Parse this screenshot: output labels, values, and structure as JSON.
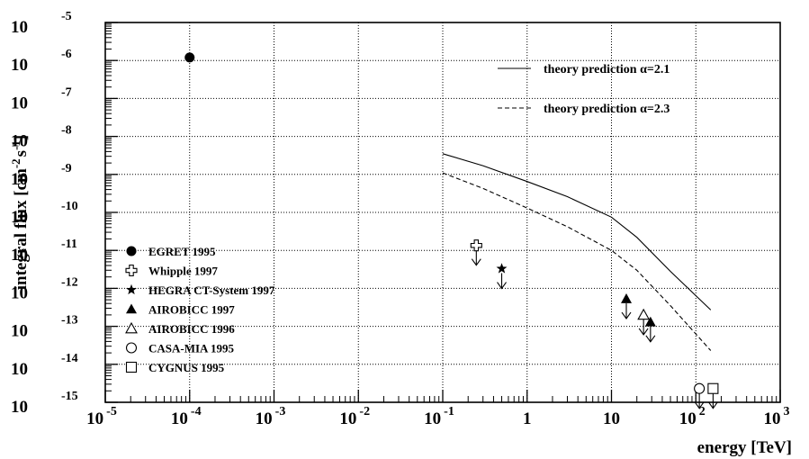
{
  "chart_data": {
    "type": "scatter",
    "xlabel": "energy [TeV]",
    "ylabel": "integral flux [cm",
    "ylabel_sup1": "-2",
    "ylabel_mid": "s",
    "ylabel_sup2": "-1",
    "ylabel_end": "]",
    "x_scale": "log",
    "y_scale": "log",
    "xlim": [
      1e-05,
      1000
    ],
    "ylim": [
      1e-15,
      1e-05
    ],
    "grid": true,
    "x_ticks": [
      {
        "v": 1e-05,
        "base": "10",
        "exp": "-5"
      },
      {
        "v": 0.0001,
        "base": "10",
        "exp": "-4"
      },
      {
        "v": 0.001,
        "base": "10",
        "exp": "-3"
      },
      {
        "v": 0.01,
        "base": "10",
        "exp": "-2"
      },
      {
        "v": 0.1,
        "base": "10",
        "exp": "-1"
      },
      {
        "v": 1,
        "base": "1",
        "exp": ""
      },
      {
        "v": 10,
        "base": "10",
        "exp": ""
      },
      {
        "v": 100,
        "base": "10",
        "exp": "2"
      },
      {
        "v": 1000,
        "base": "10",
        "exp": "3"
      }
    ],
    "y_ticks": [
      {
        "v": -15,
        "base": "10",
        "exp": "-15"
      },
      {
        "v": -14,
        "base": "10",
        "exp": "-14"
      },
      {
        "v": -13,
        "base": "10",
        "exp": "-13"
      },
      {
        "v": -12,
        "base": "10",
        "exp": "-12"
      },
      {
        "v": -11,
        "base": "10",
        "exp": "-11"
      },
      {
        "v": -10,
        "base": "10",
        "exp": "-10"
      },
      {
        "v": -9,
        "base": "10",
        "exp": "-9"
      },
      {
        "v": -8,
        "base": "10",
        "exp": "-8"
      },
      {
        "v": -7,
        "base": "10",
        "exp": "-7"
      },
      {
        "v": -6,
        "base": "10",
        "exp": "-6"
      },
      {
        "v": -5,
        "base": "10",
        "exp": "-5"
      }
    ],
    "theory_lines": [
      {
        "name": "theory prediction α=2.1",
        "dash": "solid",
        "points": [
          [
            0.1,
            3.5e-09
          ],
          [
            0.3,
            1.7e-09
          ],
          [
            1,
            6.5e-10
          ],
          [
            3,
            2.6e-10
          ],
          [
            10,
            7.5e-11
          ],
          [
            20,
            2.2e-11
          ],
          [
            50,
            2.8e-12
          ],
          [
            150,
            2.7e-13
          ]
        ]
      },
      {
        "name": "theory prediction α=2.3",
        "dash": "dashed",
        "points": [
          [
            0.1,
            1.1e-09
          ],
          [
            0.3,
            4.3e-10
          ],
          [
            1,
            1.3e-10
          ],
          [
            3,
            4.2e-11
          ],
          [
            10,
            1e-11
          ],
          [
            20,
            3e-12
          ],
          [
            50,
            3.5e-13
          ],
          [
            150,
            2.3e-14
          ]
        ]
      }
    ],
    "series": [
      {
        "name": "EGRET 1995",
        "marker": "filled-circle",
        "points": [
          {
            "x": 0.0001,
            "y": 1.2e-06,
            "upper_limit": false
          }
        ]
      },
      {
        "name": "Whipple 1997",
        "marker": "open-cross",
        "points": [
          {
            "x": 0.25,
            "y": 1.35e-11,
            "upper_limit": true
          }
        ]
      },
      {
        "name": "HEGRA CT-System 1997",
        "marker": "filled-star",
        "points": [
          {
            "x": 0.5,
            "y": 3.3e-12,
            "upper_limit": true
          }
        ]
      },
      {
        "name": "AIROBICC 1997",
        "marker": "filled-triangle",
        "points": [
          {
            "x": 15,
            "y": 5.3e-13,
            "upper_limit": true
          },
          {
            "x": 29,
            "y": 1.3e-13,
            "upper_limit": true
          }
        ]
      },
      {
        "name": "AIROBICC 1996",
        "marker": "open-triangle",
        "points": [
          {
            "x": 24,
            "y": 2e-13,
            "upper_limit": true
          }
        ]
      },
      {
        "name": "CASA-MIA 1995",
        "marker": "open-circle",
        "points": [
          {
            "x": 110,
            "y": 2.3e-15,
            "upper_limit": true
          }
        ]
      },
      {
        "name": "CYGNUS 1995",
        "marker": "open-square",
        "points": [
          {
            "x": 160,
            "y": 2.3e-15,
            "upper_limit": true
          }
        ]
      }
    ]
  }
}
